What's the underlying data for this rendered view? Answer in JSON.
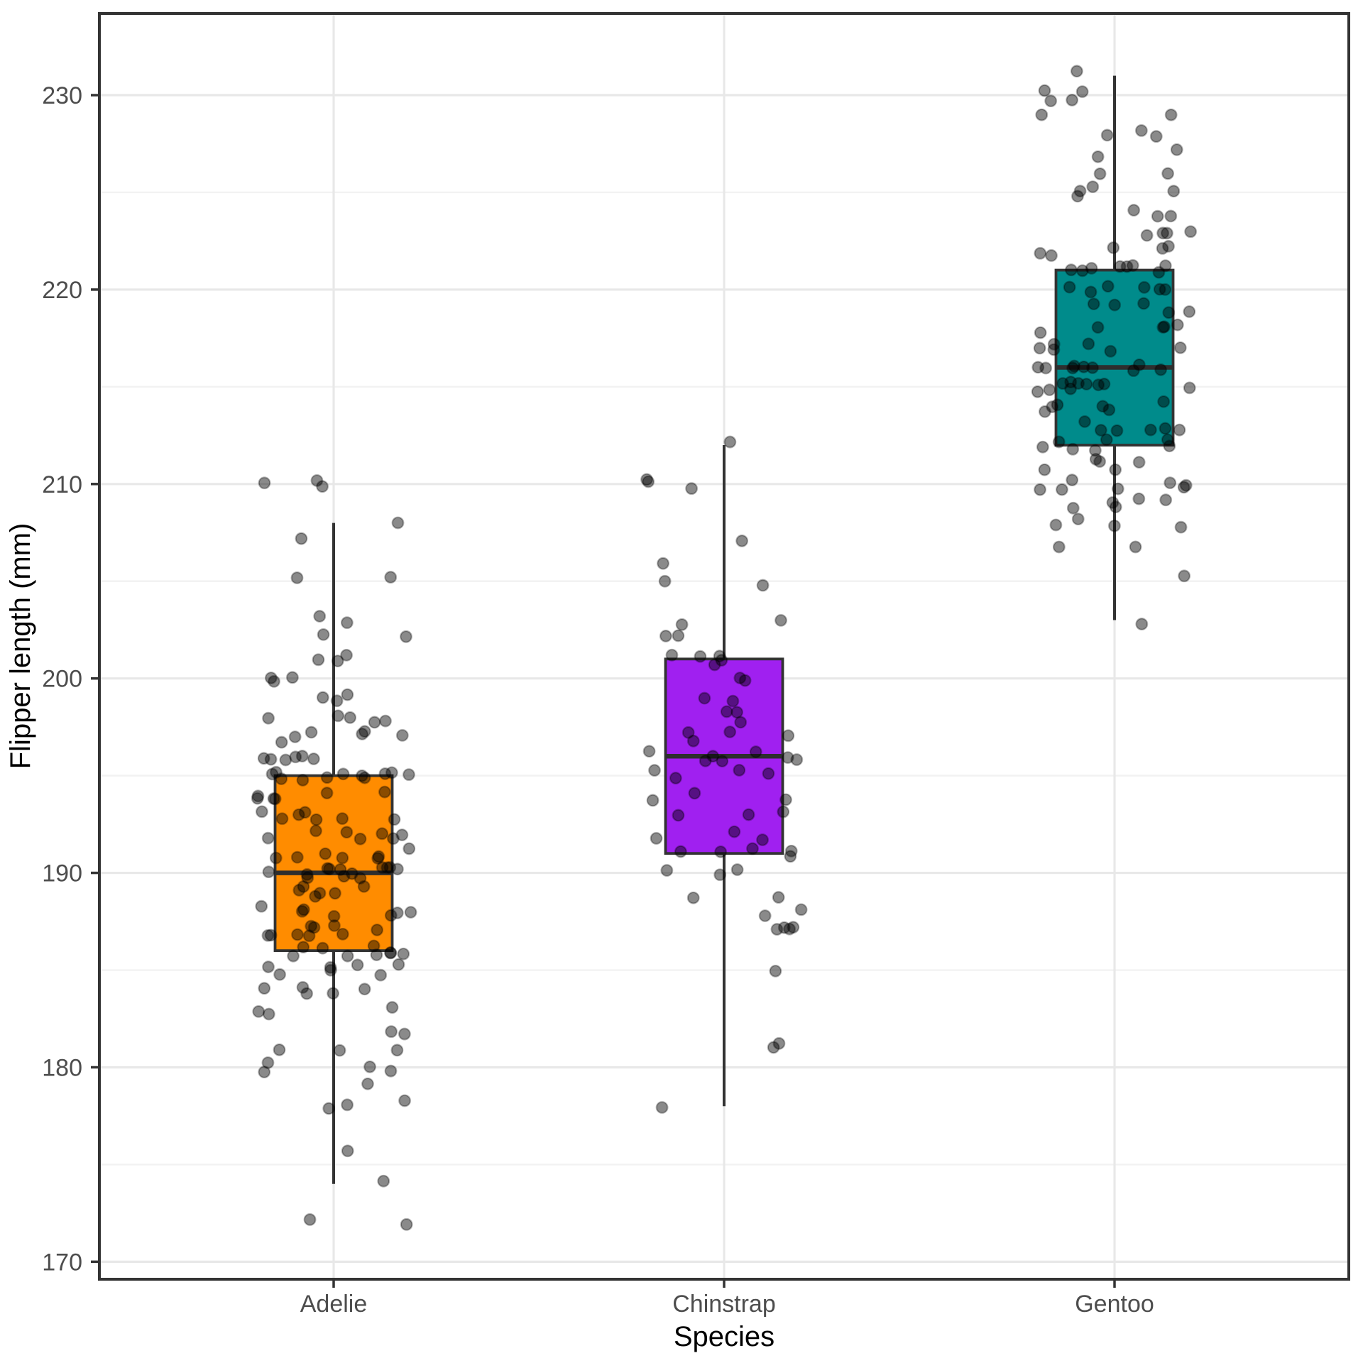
{
  "chart_data": {
    "type": "boxplot",
    "title": "",
    "xlabel": "Species",
    "ylabel": "Flipper length (mm)",
    "legend": "none",
    "grid": "on",
    "categories": [
      "Adelie",
      "Chinstrap",
      "Gentoo"
    ],
    "x_axis": {
      "range_units": [
        0.4,
        3.6
      ],
      "positions": [
        1,
        2,
        3
      ],
      "tick_labels": [
        "Adelie",
        "Chinstrap",
        "Gentoo"
      ]
    },
    "y_axis": {
      "range": [
        169.1,
        234.2
      ],
      "ticks_major": [
        170,
        180,
        190,
        200,
        210,
        220,
        230
      ],
      "ticks_minor": [
        175,
        185,
        195,
        205,
        215,
        225
      ],
      "tick_labels": [
        "170",
        "180",
        "190",
        "200",
        "210",
        "220",
        "230"
      ]
    },
    "layout": {
      "box_width_units": 0.3,
      "jitter_width_units": 0.2,
      "jitter_height_units": 0.3
    },
    "theme": {
      "panel_background": "#ffffff",
      "panel_border": "#333333",
      "grid_major": "#e8e8e8",
      "grid_minor": "#f2f2f2",
      "tick_mark": "#333333",
      "tick_label_color": "#4d4d4d",
      "axis_title_color": "#000000",
      "box_outline": "#333333",
      "median_color": "#2e2e2e",
      "point_fill": "rgba(0,0,0,0.46)",
      "point_stroke": "rgba(0,0,0,0.30)"
    },
    "series": [
      {
        "name": "Adelie",
        "color": "#FF8C00",
        "n": 151,
        "box": {
          "whisker_low": 174,
          "q1": 186,
          "median": 190,
          "q3": 195,
          "whisker_high": 208
        },
        "values": [
          172,
          172,
          174,
          176,
          178,
          178,
          178,
          179,
          180,
          180,
          180,
          180,
          181,
          181,
          181,
          182,
          182,
          183,
          183,
          183,
          184,
          184,
          184,
          184,
          184,
          185,
          185,
          185,
          185,
          185,
          185,
          185,
          186,
          186,
          186,
          186,
          186,
          186,
          186,
          186,
          186,
          187,
          187,
          187,
          187,
          187,
          187,
          187,
          187,
          187,
          188,
          188,
          188,
          188,
          188,
          188,
          188,
          189,
          189,
          189,
          189,
          189,
          189,
          190,
          190,
          190,
          190,
          190,
          190,
          190,
          190,
          190,
          190,
          190,
          190,
          190,
          191,
          191,
          191,
          191,
          191,
          191,
          191,
          192,
          192,
          192,
          192,
          192,
          192,
          192,
          193,
          193,
          193,
          193,
          193,
          193,
          193,
          194,
          194,
          194,
          194,
          194,
          194,
          195,
          195,
          195,
          195,
          195,
          195,
          195,
          195,
          195,
          195,
          195,
          196,
          196,
          196,
          196,
          196,
          196,
          197,
          197,
          197,
          197,
          197,
          197,
          198,
          198,
          198,
          198,
          198,
          199,
          199,
          199,
          200,
          200,
          200,
          201,
          201,
          201,
          202,
          202,
          203,
          203,
          205,
          205,
          207,
          208,
          210,
          210,
          210
        ]
      },
      {
        "name": "Chinstrap",
        "color": "#A020F0",
        "n": 68,
        "box": {
          "whisker_low": 178,
          "q1": 191,
          "median": 196,
          "q3": 201,
          "whisker_high": 212
        },
        "values": [
          178,
          181,
          181,
          185,
          187,
          187,
          187,
          187,
          188,
          188,
          189,
          189,
          190,
          190,
          190,
          191,
          191,
          191,
          191,
          191,
          192,
          192,
          192,
          193,
          193,
          193,
          194,
          194,
          194,
          195,
          195,
          195,
          195,
          196,
          196,
          196,
          196,
          196,
          196,
          196,
          197,
          197,
          197,
          197,
          198,
          198,
          198,
          199,
          199,
          200,
          200,
          201,
          201,
          201,
          201,
          201,
          202,
          202,
          203,
          203,
          205,
          205,
          206,
          207,
          210,
          210,
          210,
          212
        ]
      },
      {
        "name": "Gentoo",
        "color": "#008B8B",
        "n": 123,
        "box": {
          "whisker_low": 203,
          "q1": 212,
          "median": 216,
          "q3": 221,
          "whisker_high": 231
        },
        "values": [
          203,
          205,
          207,
          207,
          208,
          208,
          208,
          208,
          209,
          209,
          209,
          209,
          209,
          210,
          210,
          210,
          210,
          210,
          210,
          210,
          211,
          211,
          211,
          211,
          211,
          212,
          212,
          212,
          212,
          212,
          212,
          212,
          213,
          213,
          213,
          213,
          213,
          213,
          214,
          214,
          214,
          214,
          214,
          214,
          215,
          215,
          215,
          215,
          215,
          215,
          215,
          215,
          215,
          215,
          216,
          216,
          216,
          216,
          216,
          216,
          216,
          216,
          216,
          217,
          217,
          217,
          217,
          217,
          217,
          218,
          218,
          218,
          218,
          218,
          219,
          219,
          219,
          219,
          219,
          220,
          220,
          220,
          220,
          220,
          220,
          221,
          221,
          221,
          221,
          221,
          221,
          221,
          221,
          222,
          222,
          222,
          222,
          222,
          223,
          223,
          223,
          223,
          224,
          224,
          224,
          225,
          225,
          225,
          225,
          226,
          226,
          227,
          227,
          228,
          228,
          228,
          229,
          229,
          230,
          230,
          230,
          230,
          231
        ]
      }
    ]
  }
}
